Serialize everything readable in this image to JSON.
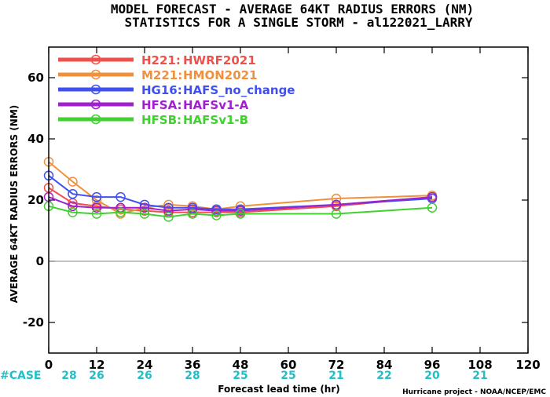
{
  "chart_data": {
    "type": "line",
    "title": "MODEL FORECAST - AVERAGE 64KT RADIUS ERRORS (NM)",
    "subtitle": "STATISTICS FOR A SINGLE STORM - al122021_LARRY",
    "xlabel": "Forecast lead time (hr)",
    "ylabel": "AVERAGE 64KT RADIUS ERRORS (NM)",
    "xlim": [
      0,
      120
    ],
    "ylim": [
      -30,
      70
    ],
    "xticks": [
      0,
      12,
      24,
      36,
      48,
      60,
      72,
      84,
      96,
      108,
      120
    ],
    "yticks": [
      -20,
      0,
      20,
      40,
      60
    ],
    "zero_line": true,
    "legend_position": "top-left",
    "case_label": "#CASE",
    "case_hours": [
      0,
      12,
      24,
      36,
      48,
      60,
      72,
      84,
      96,
      108
    ],
    "case_counts": [
      "28",
      "26",
      "26",
      "28",
      "25",
      "25",
      "21",
      "22",
      "20",
      "21"
    ],
    "credit": "Hurricane project - NOAA/NCEP/EMC",
    "series": [
      {
        "code": "H221",
        "model": "HWRF2021",
        "color": "#f0504a",
        "x": [
          0,
          6,
          12,
          18,
          24,
          30,
          36,
          42,
          48,
          72,
          96
        ],
        "y": [
          24,
          19,
          18,
          17,
          16.5,
          16,
          16,
          16,
          16,
          18,
          21
        ]
      },
      {
        "code": "M221",
        "model": "HMON2021",
        "color": "#f0903c",
        "x": [
          0,
          6,
          12,
          18,
          24,
          30,
          36,
          42,
          48,
          72,
          96
        ],
        "y": [
          32.5,
          26,
          20,
          15.5,
          17.5,
          18.5,
          18,
          17,
          18,
          20.5,
          21.5
        ]
      },
      {
        "code": "HG16",
        "model": "HAFS_no_change",
        "color": "#4050f0",
        "x": [
          0,
          6,
          12,
          18,
          24,
          30,
          36,
          42,
          48,
          72,
          96
        ],
        "y": [
          28,
          22,
          21,
          21,
          18.5,
          17.5,
          17.5,
          17,
          17,
          18.5,
          20.5
        ]
      },
      {
        "code": "HFSA",
        "model": "HAFSv1-A",
        "color": "#a020d0",
        "x": [
          0,
          6,
          12,
          18,
          24,
          30,
          36,
          42,
          48,
          72,
          96
        ],
        "y": [
          21,
          18,
          17.5,
          17.5,
          17.5,
          16.5,
          17,
          16.5,
          16.5,
          18.5,
          21
        ]
      },
      {
        "code": "HFSB",
        "model": "HAFSv1-B",
        "color": "#40d030",
        "x": [
          0,
          6,
          12,
          18,
          24,
          30,
          36,
          42,
          48,
          72,
          96
        ],
        "y": [
          18,
          16,
          15.5,
          16,
          15.5,
          14.5,
          15.5,
          15,
          15.5,
          15.5,
          17.5
        ]
      }
    ]
  },
  "colors": {
    "case_text": "#20c0c8",
    "zero_line": "#888888"
  }
}
